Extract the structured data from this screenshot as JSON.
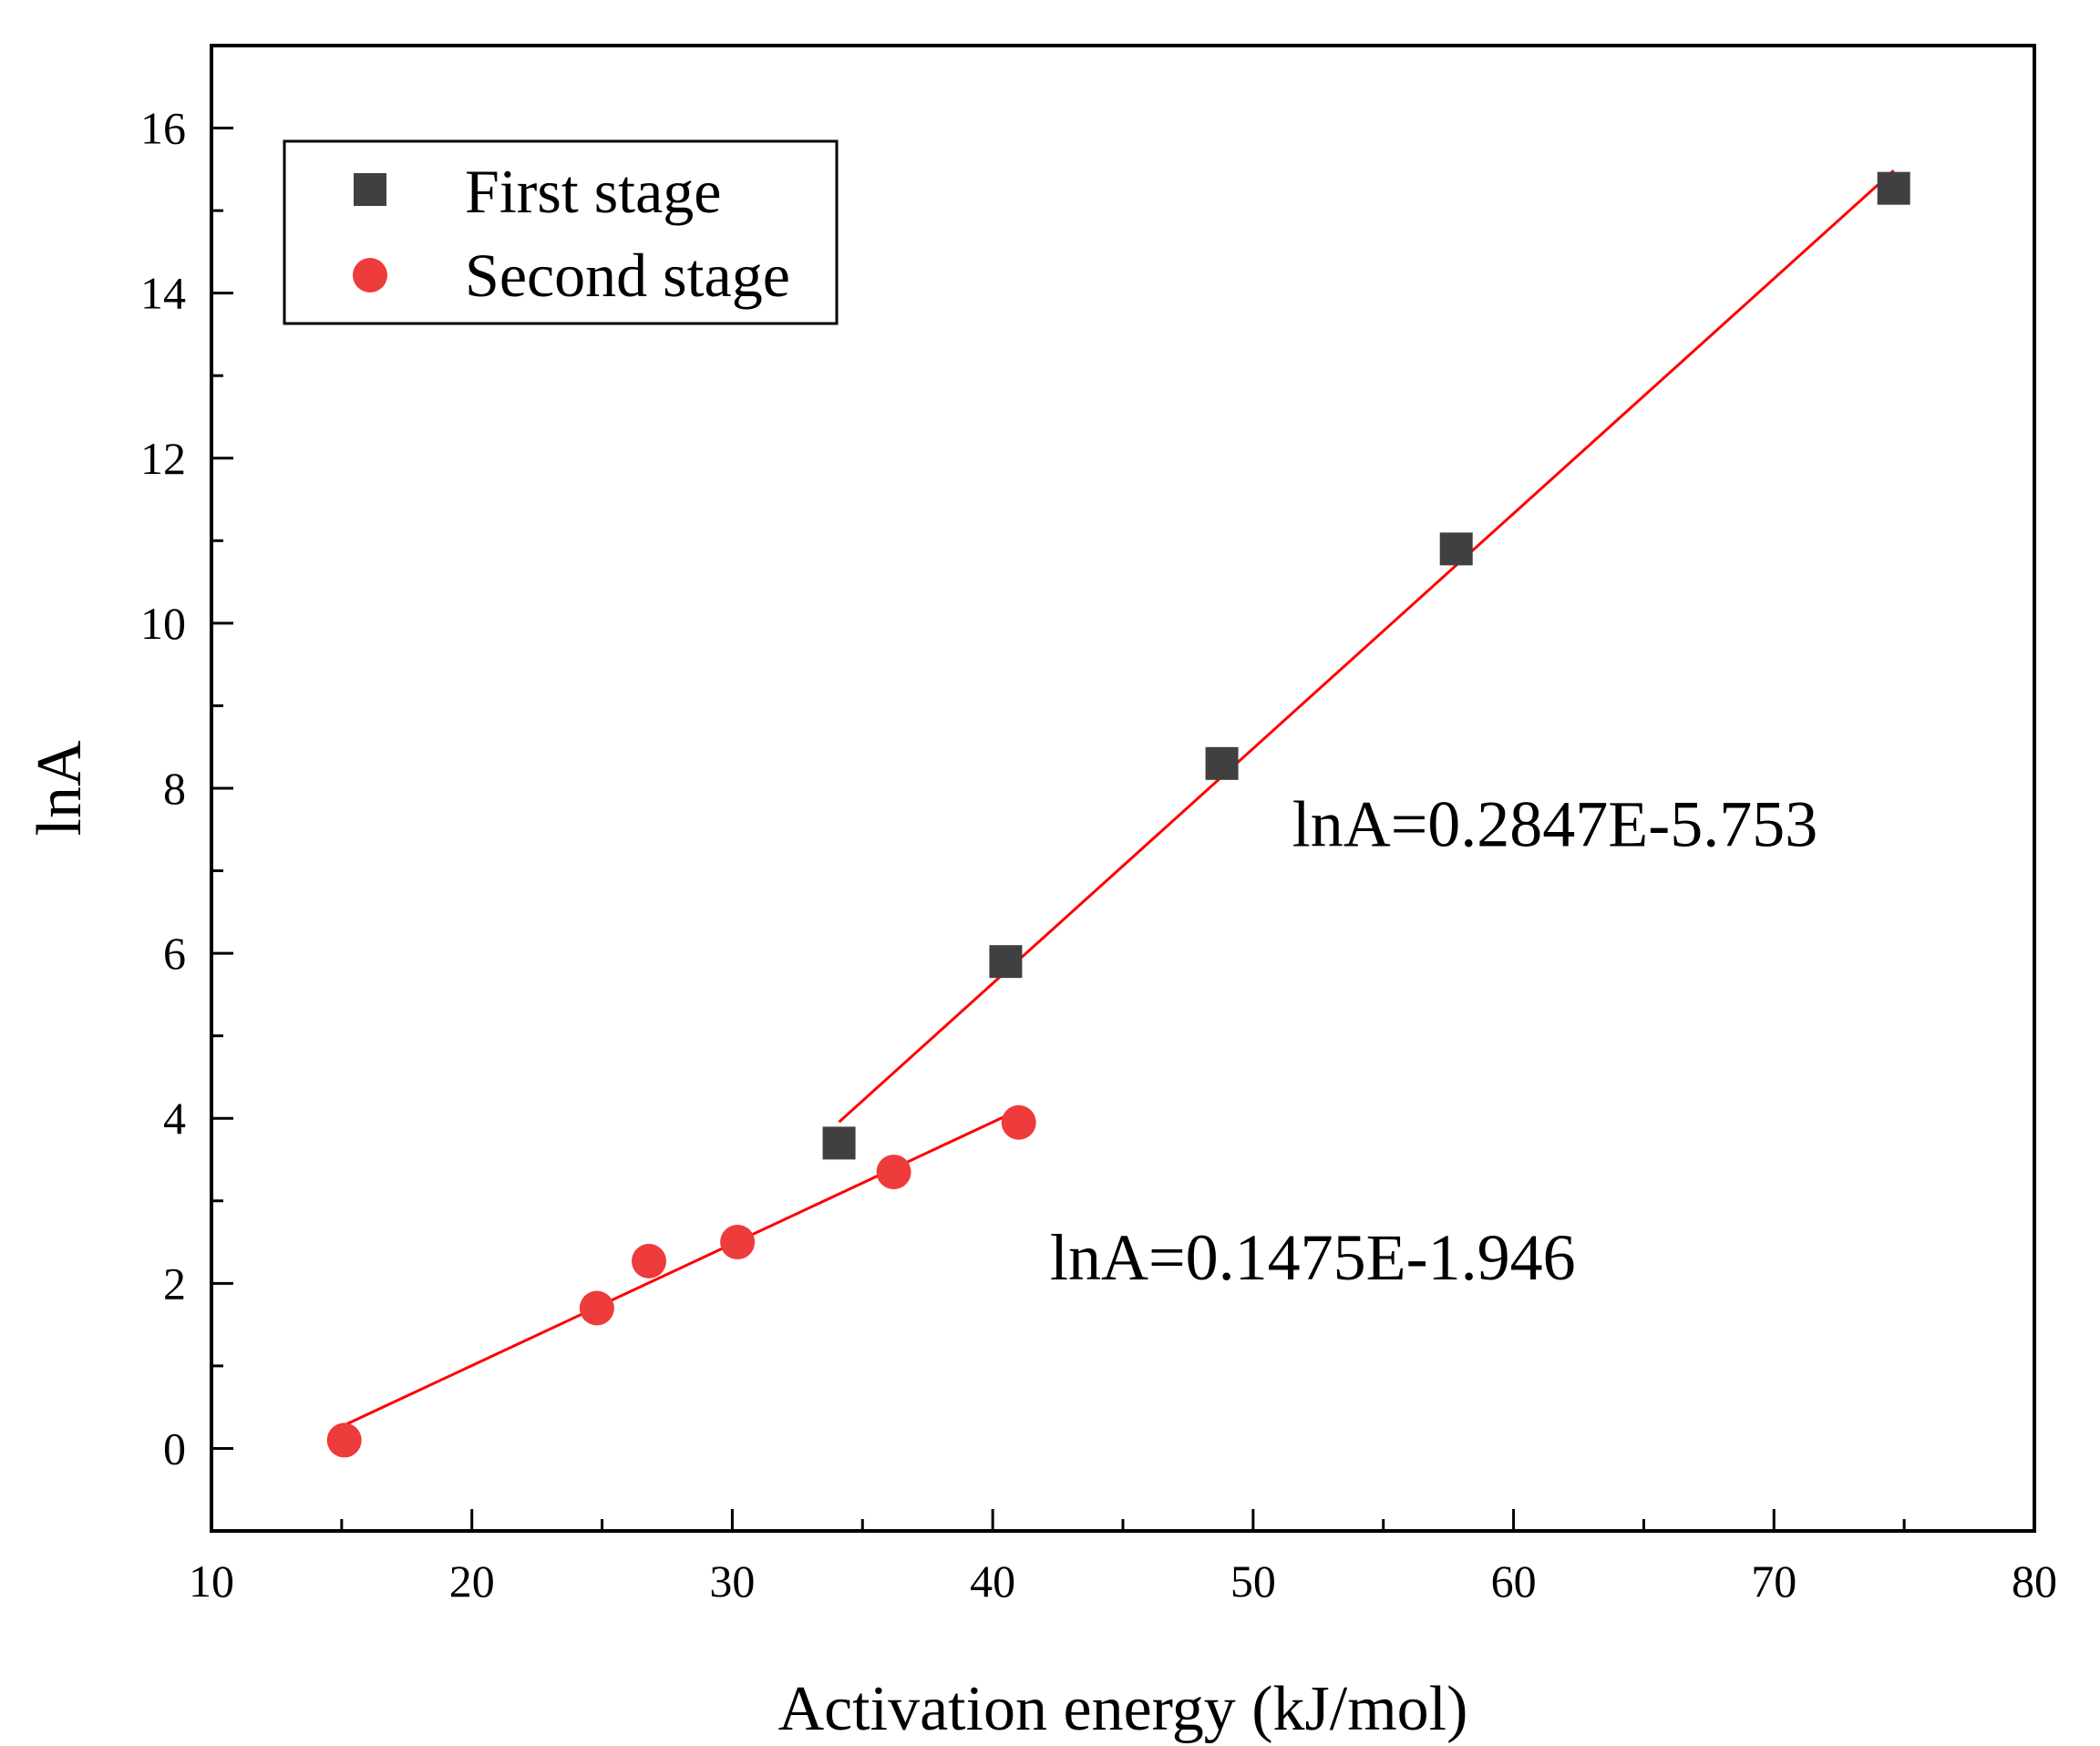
{
  "chart_data": {
    "type": "scatter",
    "title": "",
    "xlabel": "Activation energy (kJ/mol)",
    "ylabel": "lnA",
    "xlim": [
      10,
      80
    ],
    "ylim": [
      -1,
      17
    ],
    "xticks": [
      10,
      20,
      30,
      40,
      50,
      60,
      70,
      80
    ],
    "yticks": [
      0,
      2,
      4,
      6,
      8,
      10,
      12,
      14,
      16
    ],
    "grid": false,
    "legend_position": "top-left",
    "series": [
      {
        "name": "First stage",
        "marker": "square",
        "color": "#404040",
        "x": [
          34.1,
          40.5,
          48.8,
          57.8,
          74.6
        ],
        "y": [
          3.7,
          5.9,
          8.3,
          10.9,
          15.27
        ],
        "fit": {
          "slope": 0.2847,
          "intercept": -5.753,
          "x_range": [
            34.1,
            74.6
          ],
          "color": "#ff0000"
        }
      },
      {
        "name": "Second stage",
        "marker": "circle",
        "color": "#ee3b3b",
        "x": [
          15.1,
          24.8,
          26.8,
          30.2,
          36.2,
          41.0
        ],
        "y": [
          0.1,
          1.7,
          2.27,
          2.5,
          3.35,
          3.95
        ],
        "fit": {
          "slope": 0.1475,
          "intercept": -1.946,
          "x_range": [
            15.1,
            41.0
          ],
          "color": "#ff0000"
        }
      }
    ],
    "annotations": [
      {
        "text": "lnA=0.2847E-5.753",
        "x": 51.5,
        "y": 7.3
      },
      {
        "text": "lnA=0.1475E-1.946",
        "x": 42.2,
        "y": 2.05
      }
    ]
  }
}
